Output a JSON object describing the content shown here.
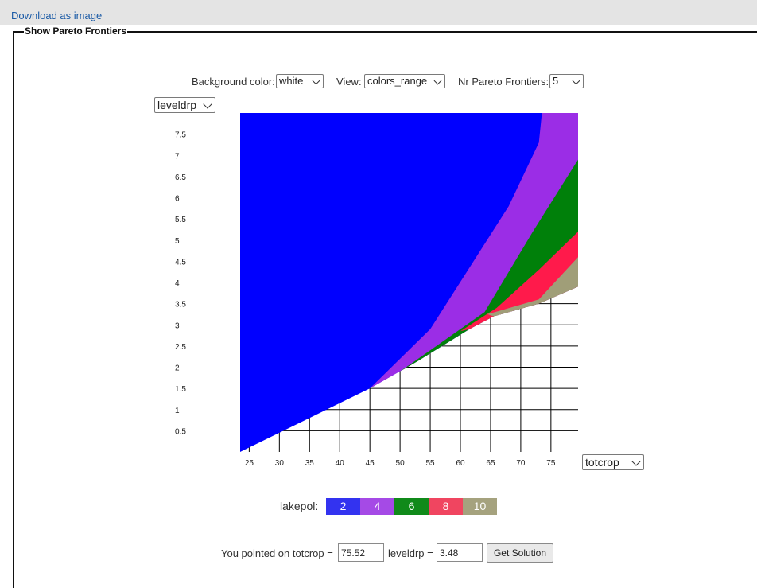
{
  "download_label": "Download as image",
  "section_title": "Show Pareto Frontiers",
  "controls": {
    "bg_label": "Background color:",
    "bg_value": "white",
    "view_label": "View:",
    "view_value": "colors_range",
    "nr_label": "Nr Pareto Frontiers:",
    "nr_value": "5"
  },
  "y_axis_select": "leveldrp",
  "x_axis_select": "totcrop",
  "colors": {
    "blue": "#0000ff",
    "purple": "#9b2de6",
    "green": "#00800a",
    "red": "#ff1a4b",
    "olive": "#a09e78"
  },
  "legend": {
    "title": "lakepol:",
    "items": [
      {
        "label": "2",
        "color": "#3333f0"
      },
      {
        "label": "4",
        "color": "#a54ae6"
      },
      {
        "label": "6",
        "color": "#108a1a"
      },
      {
        "label": "8",
        "color": "#f04560"
      },
      {
        "label": "10",
        "color": "#a5a27e"
      }
    ]
  },
  "chart_data": {
    "type": "area",
    "x_ticks": [
      "25",
      "30",
      "35",
      "40",
      "45",
      "50",
      "55",
      "60",
      "65",
      "70",
      "75"
    ],
    "y_ticks": [
      "0.5",
      "1",
      "1.5",
      "2",
      "2.5",
      "3",
      "3.5",
      "4",
      "4.5",
      "5",
      "5.5",
      "6",
      "6.5",
      "7",
      "7.5"
    ],
    "xlim": [
      23.5,
      79.5
    ],
    "ylim": [
      0,
      8
    ],
    "grid": true,
    "series": [
      {
        "name": "2",
        "points": [
          [
            23.5,
            0
          ],
          [
            45,
            1.5
          ],
          [
            53,
            2.15
          ],
          [
            61.5,
            2.9
          ],
          [
            65.5,
            3.2
          ],
          [
            73,
            3.5
          ],
          [
            79.5,
            3.9
          ],
          [
            79.5,
            8
          ],
          [
            23.5,
            8
          ]
        ]
      },
      {
        "name": "4",
        "points": [
          [
            45,
            1.5
          ],
          [
            55,
            2.9
          ],
          [
            68,
            5.8
          ],
          [
            73,
            7.3
          ],
          [
            73.5,
            8
          ],
          [
            79.5,
            8
          ],
          [
            79.5,
            3.9
          ],
          [
            73,
            3.5
          ],
          [
            65.5,
            3.2
          ],
          [
            61.5,
            2.9
          ],
          [
            53,
            2.15
          ]
        ]
      },
      {
        "name": "6",
        "points": [
          [
            50,
            1.9
          ],
          [
            55,
            2.4
          ],
          [
            64,
            3.3
          ],
          [
            72,
            5.2
          ],
          [
            79.5,
            6.9
          ],
          [
            79.5,
            3.9
          ],
          [
            73,
            3.5
          ],
          [
            65.5,
            3.2
          ],
          [
            61.5,
            2.9
          ],
          [
            53,
            2.15
          ]
        ]
      },
      {
        "name": "8",
        "points": [
          [
            60,
            2.85
          ],
          [
            66,
            3.4
          ],
          [
            73,
            4.3
          ],
          [
            79.5,
            5.2
          ],
          [
            79.5,
            3.9
          ],
          [
            73,
            3.5
          ],
          [
            65.5,
            3.2
          ],
          [
            61.5,
            2.9
          ]
        ]
      },
      {
        "name": "10",
        "points": [
          [
            64.5,
            3.25
          ],
          [
            73,
            3.6
          ],
          [
            79.5,
            4.6
          ],
          [
            79.5,
            3.9
          ],
          [
            73,
            3.5
          ],
          [
            65.5,
            3.2
          ]
        ]
      }
    ]
  },
  "pointer": {
    "prefix": "You pointed on totcrop =",
    "x_value": "75.52",
    "mid_label": "leveldrp =",
    "y_value": "3.48",
    "button": "Get Solution"
  }
}
